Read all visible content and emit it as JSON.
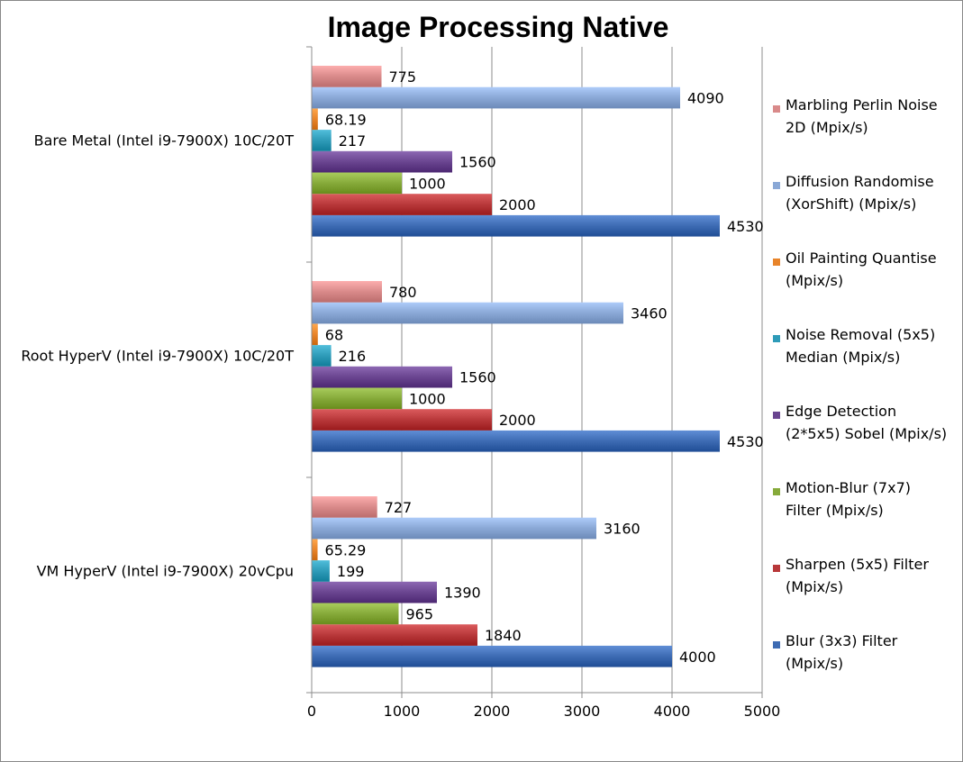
{
  "chart_data": {
    "type": "bar",
    "orientation": "horizontal",
    "title": "Image Processing Native",
    "xlabel": "",
    "ylabel": "",
    "xlim": [
      0,
      5000
    ],
    "x_ticks": [
      0,
      1000,
      2000,
      3000,
      4000,
      5000
    ],
    "grid": "vertical major gridlines",
    "legend_position": "right",
    "categories": [
      "Bare Metal (Intel i9-7900X) 10C/20T",
      "Root HyperV (Intel i9-7900X) 10C/20T",
      "VM HyperV (Intel i9-7900X) 20vCpu"
    ],
    "series": [
      {
        "name": "Blur (3x3) Filter (Mpix/s)",
        "legend_lines": [
          "Blur (3x3) Filter",
          "(Mpix/s)"
        ],
        "color": "#3d6bb3",
        "values": [
          4530,
          4530,
          4000
        ],
        "labels": [
          "4530",
          "4530",
          "4000"
        ]
      },
      {
        "name": "Sharpen (5x5) Filter (Mpix/s)",
        "legend_lines": [
          "Sharpen (5x5) Filter",
          "(Mpix/s)"
        ],
        "color": "#b8383a",
        "values": [
          2000,
          2000,
          1840
        ],
        "labels": [
          "2000",
          "2000",
          "1840"
        ]
      },
      {
        "name": "Motion-Blur (7x7) Filter (Mpix/s)",
        "legend_lines": [
          "Motion-Blur (7x7)",
          "Filter (Mpix/s)"
        ],
        "color": "#86aa3a",
        "values": [
          1000,
          1000,
          965
        ],
        "labels": [
          "1000",
          "1000",
          "965"
        ]
      },
      {
        "name": "Edge Detection (2*5x5) Sobel (Mpix/s)",
        "legend_lines": [
          "Edge Detection",
          "(2*5x5) Sobel (Mpix/s)"
        ],
        "color": "#6a4590",
        "values": [
          1560,
          1560,
          1390
        ],
        "labels": [
          "1560",
          "1560",
          "1390"
        ]
      },
      {
        "name": "Noise Removal (5x5) Median (Mpix/s)",
        "legend_lines": [
          "Noise Removal (5x5)",
          "Median (Mpix/s)"
        ],
        "color": "#2e9bb8",
        "values": [
          217,
          216,
          199
        ],
        "labels": [
          "217",
          "216",
          "199"
        ]
      },
      {
        "name": "Oil Painting Quantise (Mpix/s)",
        "legend_lines": [
          "Oil Painting Quantise",
          "(Mpix/s)"
        ],
        "color": "#e8842a",
        "values": [
          68.19,
          68,
          65.29
        ],
        "labels": [
          "68.19",
          "68",
          "65.29"
        ]
      },
      {
        "name": "Diffusion Randomise (XorShift) (Mpix/s)",
        "legend_lines": [
          "Diffusion Randomise",
          "(XorShift) (Mpix/s)"
        ],
        "color": "#8aa8d6",
        "values": [
          4090,
          3460,
          3160
        ],
        "labels": [
          "4090",
          "3460",
          "3160"
        ]
      },
      {
        "name": "Marbling Perlin Noise 2D (Mpix/s)",
        "legend_lines": [
          "Marbling Perlin Noise",
          "2D (Mpix/s)"
        ],
        "color": "#d98a8a",
        "values": [
          775,
          780,
          727
        ],
        "labels": [
          "775",
          "780",
          "727"
        ]
      }
    ]
  }
}
